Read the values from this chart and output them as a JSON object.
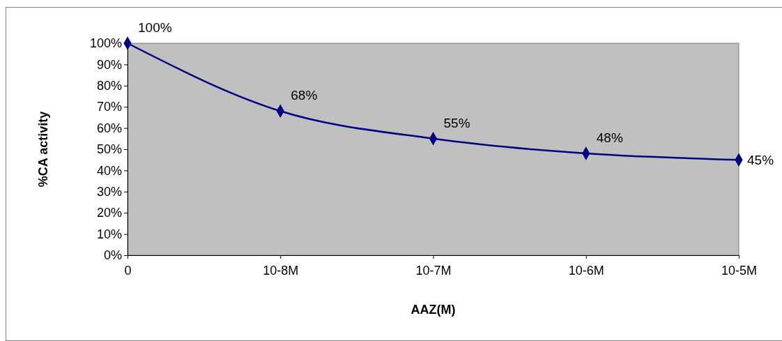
{
  "chart_data": {
    "type": "line",
    "xlabel": "AAZ(M)",
    "ylabel": "%CA activity",
    "categories": [
      "0",
      "10-8M",
      "10-7M",
      "10-6M",
      "10-5M"
    ],
    "series": [
      {
        "color": "#000080",
        "values": [
          100,
          68,
          55,
          48,
          45
        ]
      }
    ],
    "value_labels": [
      "100%",
      "68%",
      "55%",
      "48%",
      "45%"
    ],
    "ylim": [
      0,
      100
    ],
    "yticks": [
      {
        "value": 0,
        "label": "0%"
      },
      {
        "value": 10,
        "label": "10%"
      },
      {
        "value": 20,
        "label": "20%"
      },
      {
        "value": 30,
        "label": "30%"
      },
      {
        "value": 40,
        "label": "40%"
      },
      {
        "value": 50,
        "label": "50%"
      },
      {
        "value": 60,
        "label": "60%"
      },
      {
        "value": 70,
        "label": "70%"
      },
      {
        "value": 80,
        "label": "80%"
      },
      {
        "value": 90,
        "label": "90%"
      },
      {
        "value": 100,
        "label": "100%"
      }
    ],
    "marker": "diamond",
    "line_style": "solid"
  }
}
